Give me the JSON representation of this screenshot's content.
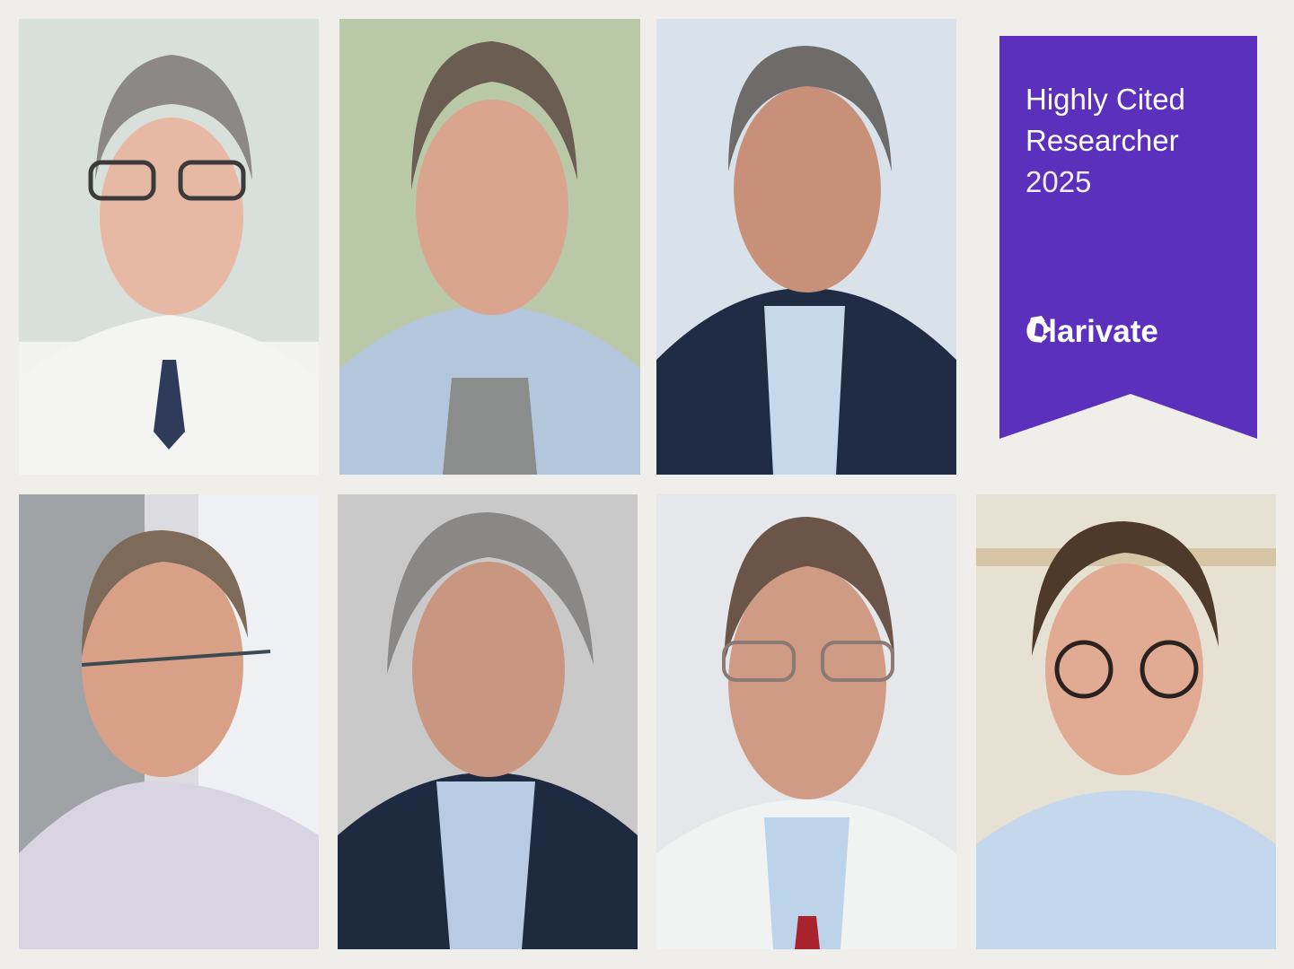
{
  "badge": {
    "line1": "Highly Cited",
    "line2": "Researcher",
    "year": "2025",
    "brand": "Clarivate",
    "color": "#5b30bd"
  },
  "photos": [
    {
      "description_name": "portrait-1"
    },
    {
      "description_name": "portrait-2"
    },
    {
      "description_name": "portrait-3"
    },
    {
      "description_name": "portrait-4"
    },
    {
      "description_name": "portrait-5"
    },
    {
      "description_name": "portrait-6"
    },
    {
      "description_name": "portrait-7"
    }
  ]
}
